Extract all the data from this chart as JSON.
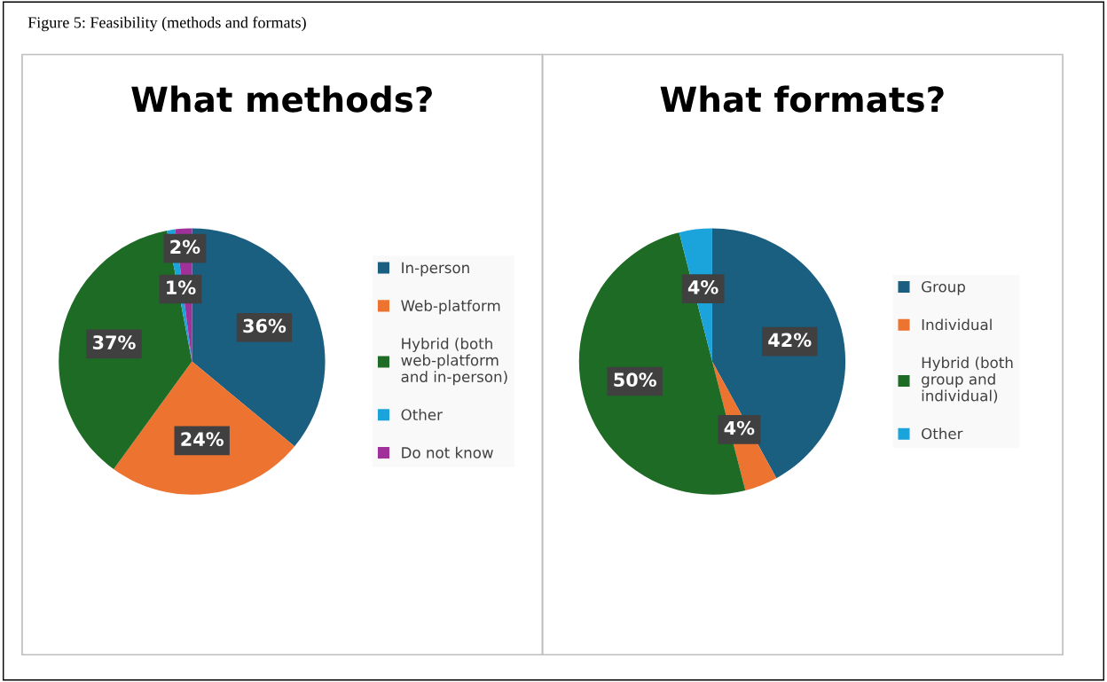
{
  "chart_data": [
    {
      "type": "pie",
      "title": "What methods?",
      "annotations": [
        "Figure 5: Feasibility (methods and formats)"
      ],
      "categories": [
        "In-person",
        "Web-platform",
        "Hybrid (both web-platform and in-person)",
        "Other",
        "Do not know"
      ],
      "values": [
        36,
        24,
        37,
        1,
        2
      ],
      "colors": [
        "#1a5e80",
        "#ed7331",
        "#1e6b25",
        "#1ba3dc",
        "#a0309a"
      ],
      "value_labels": [
        "36%",
        "24%",
        "37%",
        "1%",
        "2%"
      ],
      "legend": "right"
    },
    {
      "type": "pie",
      "title": "What formats?",
      "categories": [
        "Group",
        "Individual",
        "Hybrid (both group and individual)",
        "Other"
      ],
      "values": [
        42,
        4,
        50,
        4
      ],
      "colors": [
        "#1a5e80",
        "#ed7331",
        "#1e6b25",
        "#1ba3dc"
      ],
      "value_labels": [
        "42%",
        "4%",
        "50%",
        "4%"
      ],
      "legend": "right"
    }
  ]
}
